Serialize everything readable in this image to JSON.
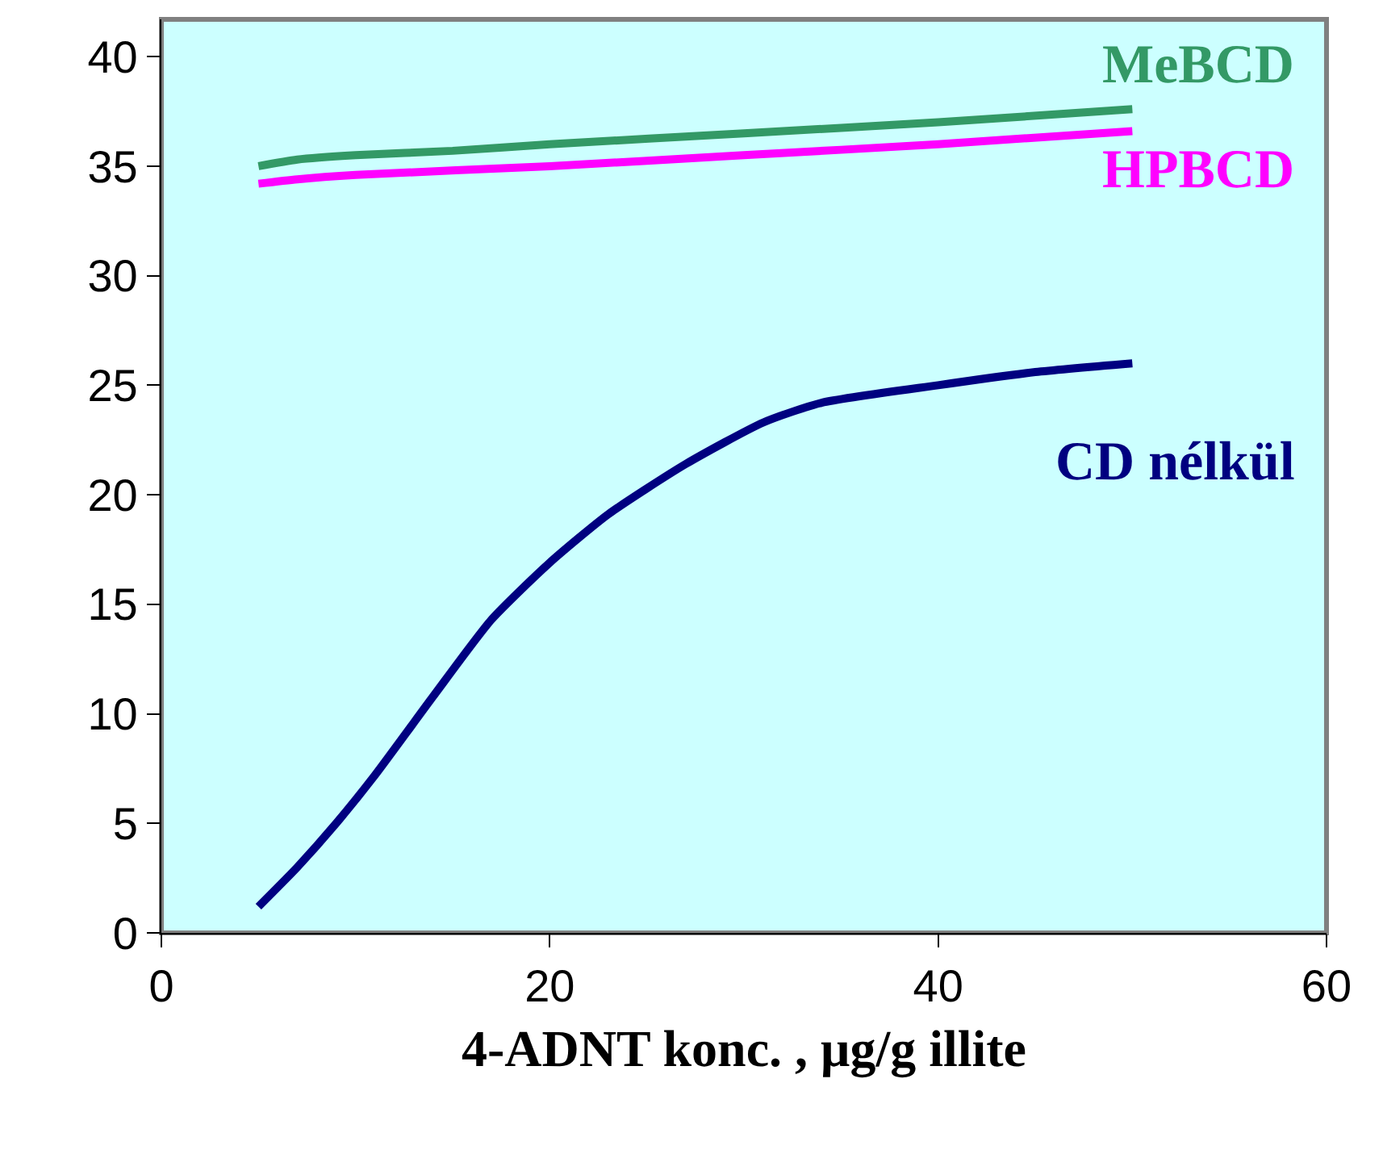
{
  "chart_data": {
    "type": "line",
    "xlabel": "4-ADNT konc. , μg/g illite",
    "xlim": [
      0,
      60
    ],
    "xticks": [
      0,
      20,
      40,
      60
    ],
    "ylim": [
      0,
      41.7
    ],
    "yticks": [
      0,
      5,
      10,
      15,
      20,
      25,
      30,
      35,
      40
    ],
    "grid": false,
    "legend": false,
    "marker": "none",
    "line_style": "solid",
    "series": [
      {
        "name": "MeBCD",
        "color": "#339966",
        "x": [
          5,
          7,
          10,
          15,
          20,
          30,
          40,
          50
        ],
        "values": [
          35,
          35.3,
          35.5,
          35.7,
          36,
          36.5,
          37,
          37.6
        ]
      },
      {
        "name": "HPBCD",
        "color": "#ff00ff",
        "x": [
          5,
          7,
          10,
          20,
          30,
          40,
          50
        ],
        "values": [
          34.2,
          34.4,
          34.6,
          35,
          35.5,
          36,
          36.6
        ]
      },
      {
        "name": "CD nélkül",
        "color": "#000080",
        "x": [
          5,
          7,
          9,
          11,
          14,
          17,
          20,
          23,
          27,
          31,
          34,
          40,
          45,
          50
        ],
        "values": [
          1.2,
          3,
          5,
          7.2,
          10.8,
          14.3,
          16.9,
          19.1,
          21.4,
          23.3,
          24.2,
          25,
          25.6,
          26
        ]
      }
    ]
  }
}
